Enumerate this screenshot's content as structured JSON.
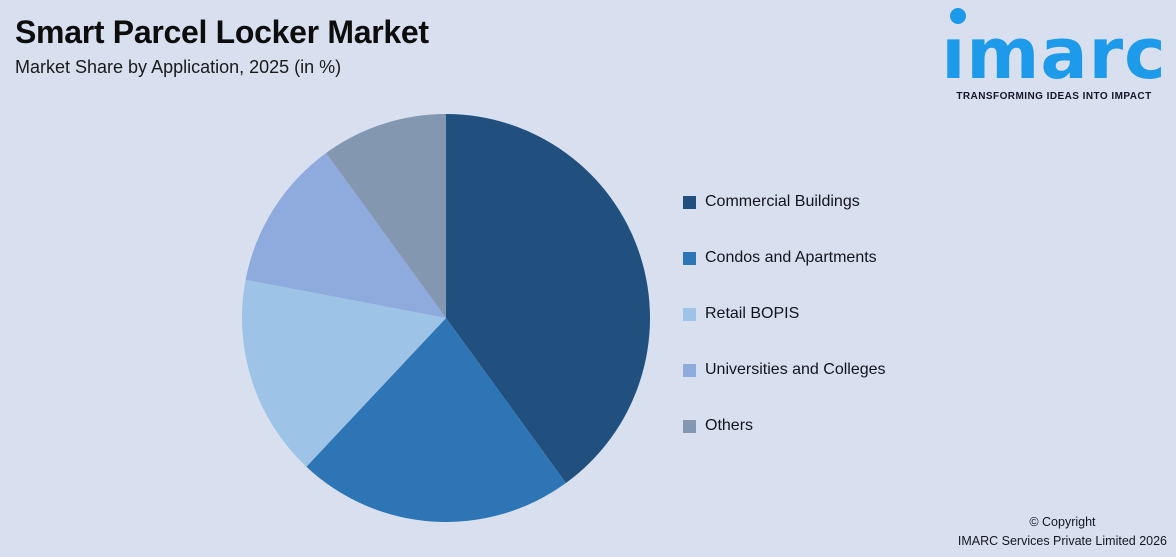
{
  "background_color": "#D8E0F0",
  "chart_data": {
    "type": "pie",
    "title": "Smart Parcel Locker Market",
    "subtitle": "Market Share by Application, 2025 (in %)",
    "unit": "%",
    "year": "2025",
    "start_angle": "12-oclock",
    "direction": "clockwise",
    "legend_position": "right",
    "data_labels": false,
    "series": [
      {
        "name": "Commercial Buildings",
        "value": 40,
        "color": "#21507F"
      },
      {
        "name": "Condos and Apartments",
        "value": 22,
        "color": "#2E75B6"
      },
      {
        "name": "Retail BOPIS",
        "value": 16,
        "color": "#9DC3E6"
      },
      {
        "name": "Universities and Colleges",
        "value": 12,
        "color": "#8FAADC"
      },
      {
        "name": "Others",
        "value": 10,
        "color": "#8497B0"
      }
    ]
  },
  "logo": {
    "brand": "imarc",
    "tagline": "TRANSFORMING IDEAS INTO IMPACT",
    "color": "#1E9AEA"
  },
  "footer": {
    "copyright_line1": "© Copyright",
    "copyright_line2": "IMARC Services Private Limited 2026"
  }
}
